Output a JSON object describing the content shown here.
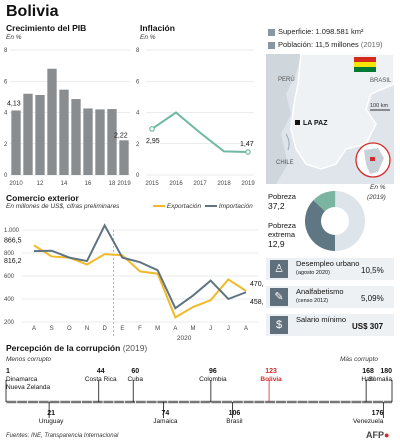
{
  "title": "Bolivia",
  "gdp": {
    "title": "Crecimiento del PIB",
    "unit": "En %",
    "years": [
      2010,
      2011,
      2012,
      2013,
      2014,
      2015,
      2016,
      2017,
      2018,
      2019
    ],
    "values": [
      4.13,
      5.2,
      5.12,
      6.8,
      5.46,
      4.86,
      4.26,
      4.2,
      4.22,
      2.22
    ],
    "first_label": "4,13",
    "last_label": "2,22",
    "yticks": [
      0,
      2,
      4,
      6,
      8
    ],
    "xticks": [
      "2010",
      "12",
      "14",
      "16",
      "18",
      "2019"
    ]
  },
  "inflation": {
    "title": "Inflación",
    "unit": "En %",
    "years": [
      2015,
      2016,
      2017,
      2018,
      2019
    ],
    "values": [
      2.95,
      4.0,
      2.71,
      1.51,
      1.47
    ],
    "first_label": "2,95",
    "last_label": "1,47",
    "yticks": [
      0,
      2,
      4,
      6,
      8
    ]
  },
  "info": {
    "surface": "Superficie: 1.098.581 km²",
    "population": "Población: 11,5 millones",
    "population_year": "(2019)"
  },
  "map": {
    "peru": "PERÚ",
    "brasil": "BRASIL",
    "chile": "CHILE",
    "lapaz": "LA PAZ",
    "scale": "100 km"
  },
  "trade": {
    "title": "Comercio exterior",
    "unit": "En millones de US$, cifras preliminares",
    "legend_export": "Exportación",
    "legend_import": "Importación",
    "months": [
      "A",
      "S",
      "O",
      "N",
      "D",
      "E",
      "F",
      "M",
      "A",
      "M",
      "J",
      "J",
      "A"
    ],
    "export": [
      866.5,
      770,
      760,
      700,
      790,
      780,
      640,
      620,
      240,
      330,
      390,
      570,
      470.7
    ],
    "import": [
      816.2,
      820,
      760,
      730,
      1040,
      760,
      720,
      650,
      320,
      430,
      560,
      400,
      458.7
    ],
    "yticks": [
      200,
      400,
      600,
      800,
      1000
    ],
    "ytick_labels": [
      "200",
      "400",
      "600",
      "800",
      "1.000"
    ],
    "year_label": "2020",
    "export_start_label": "866,5",
    "import_start_label": "816,2",
    "export_end_label": "470,7",
    "import_end_label": "458,7"
  },
  "poverty": {
    "unit": "En %",
    "year": "(2019)",
    "pobreza_label": "Pobreza",
    "pobreza_value": "37,2",
    "extrema_label": "Pobreza extrema",
    "extrema_value": "12,9",
    "values": [
      37.2,
      12.9
    ],
    "colors": [
      "#5e7782",
      "#7bb5a2"
    ]
  },
  "stats": [
    {
      "label": "Desempleo urbano",
      "note": "(agosto 2020)",
      "value": "10,5%"
    },
    {
      "label": "Analfabetismo",
      "note": "(censo 2012)",
      "value": "5,09%"
    },
    {
      "label": "Salario mínimo",
      "note": "",
      "value": "US$ 307"
    }
  ],
  "corruption": {
    "title": "Percepción de la corrupción",
    "year": "(2019)",
    "less": "Menos corrupto",
    "more": "Más corrupto",
    "max_rank": 180,
    "items": [
      {
        "rank": 1,
        "label": "Dinamarca Nueva Zelanda",
        "side": "top"
      },
      {
        "rank": 21,
        "label": "Uruguay",
        "side": "bottom"
      },
      {
        "rank": 44,
        "label": "Costa Rica",
        "side": "top"
      },
      {
        "rank": 60,
        "label": "Cuba",
        "side": "top"
      },
      {
        "rank": 74,
        "label": "Jamaica",
        "side": "bottom"
      },
      {
        "rank": 96,
        "label": "Colombia",
        "side": "top"
      },
      {
        "rank": 106,
        "label": "Brasil",
        "side": "bottom"
      },
      {
        "rank": 123,
        "label": "Bolivia",
        "side": "top",
        "highlight": true
      },
      {
        "rank": 168,
        "label": "Haití",
        "side": "top"
      },
      {
        "rank": 176,
        "label": "Venezuela",
        "side": "bottom"
      },
      {
        "rank": 180,
        "label": "Somalia",
        "side": "top"
      }
    ]
  },
  "sources": "Fuentes: INE, Transparencia Internacional",
  "credit": "AFP"
}
